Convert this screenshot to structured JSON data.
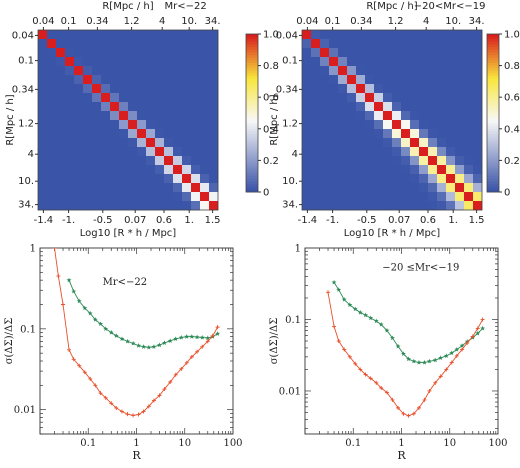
{
  "chart_data": [
    {
      "type": "heatmap",
      "top_title": "R[Mpc / h]",
      "sample_label": "Mr<−22",
      "top_ticks": [
        "0.04",
        "0.1",
        "0.34",
        "1.2",
        "4",
        "10.",
        "34."
      ],
      "left_label": "R[Mpc / h]",
      "left_ticks": [
        "0.04",
        "0.1",
        "0.34",
        "1.2",
        "4",
        "10.",
        "34."
      ],
      "xlabel": "Log10 [R * h / Mpc]",
      "bottom_ticks": [
        "-1.4",
        "-1.",
        "-0.5",
        "0.07",
        "0.6",
        "1.",
        "1.5"
      ],
      "n_bins": 20,
      "spread": 0.9,
      "colorbar": {
        "ticks": [
          "0",
          "0.2",
          "0.4",
          "0.6",
          "0.8",
          "1.0"
        ],
        "range": [
          0,
          1
        ]
      }
    },
    {
      "type": "heatmap",
      "top_title": "R[Mpc / h]",
      "sample_label": "−20<Mr<−19",
      "top_ticks": [
        "0.04",
        "0.1",
        "0.34",
        "1.2",
        "4",
        "10.",
        "34."
      ],
      "left_label": "R[Mpc / h]",
      "left_ticks": [
        "0.04",
        "0.1",
        "0.34",
        "1.2",
        "4",
        "10.",
        "34."
      ],
      "xlabel": "Log10 [R * h / Mpc]",
      "bottom_ticks": [
        "-1.4",
        "-1.",
        "-0.5",
        "0.07",
        "0.6",
        "1.",
        "1.5"
      ],
      "n_bins": 20,
      "spread": 1.4,
      "colorbar": {
        "ticks": [
          "0",
          "0.2",
          "0.4",
          "0.6",
          "0.8",
          "1.0"
        ],
        "range": [
          0,
          1
        ]
      }
    },
    {
      "type": "line",
      "xscale": "log",
      "yscale": "log",
      "xlim": [
        0.01,
        100
      ],
      "ylim": [
        0.005,
        1
      ],
      "xlabel": "R",
      "ylabel": "σ(ΔΣ)/ΔΣ",
      "annotation": "Mr<−22",
      "xticks": [
        "0.1",
        "1",
        "10",
        "100"
      ],
      "yticks": [
        "0.01",
        "0.1",
        "1"
      ],
      "series": [
        {
          "color": "#2e8b57",
          "marker": "star",
          "x": [
            0.04,
            0.05,
            0.065,
            0.085,
            0.11,
            0.14,
            0.18,
            0.23,
            0.3,
            0.38,
            0.5,
            0.65,
            0.85,
            1.1,
            1.4,
            1.8,
            2.3,
            3.0,
            3.8,
            5.0,
            6.5,
            8.5,
            11,
            14,
            18,
            23,
            30,
            38,
            48
          ],
          "y": [
            0.4,
            0.29,
            0.22,
            0.18,
            0.155,
            0.13,
            0.115,
            0.1,
            0.09,
            0.082,
            0.075,
            0.07,
            0.066,
            0.062,
            0.06,
            0.059,
            0.06,
            0.063,
            0.067,
            0.071,
            0.075,
            0.078,
            0.08,
            0.08,
            0.079,
            0.078,
            0.077,
            0.08,
            0.087
          ]
        },
        {
          "color": "#e8502c",
          "marker": "plus",
          "x": [
            0.02,
            0.024,
            0.03,
            0.04,
            0.05,
            0.065,
            0.085,
            0.11,
            0.14,
            0.18,
            0.23,
            0.3,
            0.38,
            0.5,
            0.65,
            0.85,
            1.1,
            1.4,
            1.8,
            2.3,
            3.0,
            3.8,
            5.0,
            6.5,
            8.5,
            11,
            14,
            18,
            23,
            30,
            38,
            48
          ],
          "y": [
            1.0,
            0.45,
            0.2,
            0.055,
            0.042,
            0.035,
            0.029,
            0.024,
            0.02,
            0.016,
            0.014,
            0.012,
            0.0105,
            0.0095,
            0.0088,
            0.0085,
            0.0087,
            0.0095,
            0.011,
            0.013,
            0.015,
            0.018,
            0.022,
            0.027,
            0.032,
            0.038,
            0.045,
            0.052,
            0.06,
            0.07,
            0.082,
            0.105
          ]
        }
      ]
    },
    {
      "type": "line",
      "xscale": "log",
      "yscale": "log",
      "xlim": [
        0.01,
        100
      ],
      "ylim": [
        0.0025,
        1
      ],
      "xlabel": "R",
      "ylabel": "σ(ΔΣ)/ΔΣ",
      "annotation": "−20 ≤Mr<−19",
      "xticks": [
        "0.1",
        "1",
        "10",
        "100"
      ],
      "yticks": [
        "0.01",
        "0.1",
        "1"
      ],
      "series": [
        {
          "color": "#2e8b57",
          "marker": "star",
          "x": [
            0.04,
            0.05,
            0.065,
            0.085,
            0.11,
            0.14,
            0.18,
            0.23,
            0.3,
            0.38,
            0.5,
            0.65,
            0.85,
            1.1,
            1.4,
            1.8,
            2.3,
            3.0,
            3.8,
            5.0,
            6.5,
            8.5,
            11,
            14,
            18,
            23,
            30,
            38,
            48
          ],
          "y": [
            0.33,
            0.26,
            0.19,
            0.16,
            0.14,
            0.125,
            0.115,
            0.105,
            0.095,
            0.085,
            0.07,
            0.055,
            0.042,
            0.033,
            0.028,
            0.026,
            0.025,
            0.025,
            0.026,
            0.027,
            0.029,
            0.031,
            0.034,
            0.038,
            0.043,
            0.049,
            0.056,
            0.064,
            0.075
          ]
        },
        {
          "color": "#e8502c",
          "marker": "plus",
          "x": [
            0.03,
            0.04,
            0.05,
            0.065,
            0.085,
            0.11,
            0.14,
            0.18,
            0.23,
            0.3,
            0.38,
            0.5,
            0.65,
            0.85,
            1.1,
            1.4,
            1.8,
            2.3,
            3.0,
            3.8,
            5.0,
            6.5,
            8.5,
            11,
            14,
            18,
            23,
            30,
            38,
            48
          ],
          "y": [
            0.24,
            0.08,
            0.05,
            0.038,
            0.03,
            0.024,
            0.02,
            0.017,
            0.015,
            0.013,
            0.011,
            0.0095,
            0.0075,
            0.0058,
            0.0048,
            0.0045,
            0.0048,
            0.0058,
            0.0075,
            0.01,
            0.013,
            0.016,
            0.02,
            0.025,
            0.031,
            0.038,
            0.047,
            0.058,
            0.075,
            0.1
          ]
        }
      ]
    }
  ]
}
